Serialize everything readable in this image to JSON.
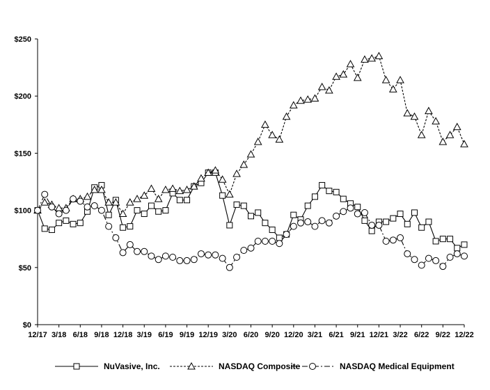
{
  "chart_data": {
    "type": "line",
    "title": "",
    "xlabel": "",
    "ylabel": "",
    "ylim": [
      0,
      250
    ],
    "y_ticks": [
      "$0",
      "$50",
      "$100",
      "$150",
      "$200",
      "$250"
    ],
    "y_tick_values": [
      0,
      50,
      100,
      150,
      200,
      250
    ],
    "x_tick_labels": [
      "12/17",
      "3/18",
      "6/18",
      "9/18",
      "12/18",
      "3/19",
      "6/19",
      "9/19",
      "12/19",
      "3/20",
      "6/20",
      "9/20",
      "12/20",
      "3/21",
      "6/21",
      "9/21",
      "12/21",
      "3/22",
      "6/22",
      "9/22",
      "12/22"
    ],
    "x_months": [
      "12/17",
      "1/18",
      "2/18",
      "3/18",
      "4/18",
      "5/18",
      "6/18",
      "7/18",
      "8/18",
      "9/18",
      "10/18",
      "11/18",
      "12/18",
      "1/19",
      "2/19",
      "3/19",
      "4/19",
      "5/19",
      "6/19",
      "7/19",
      "8/19",
      "9/19",
      "10/19",
      "11/19",
      "12/19",
      "1/20",
      "2/20",
      "3/20",
      "4/20",
      "5/20",
      "6/20",
      "7/20",
      "8/20",
      "9/20",
      "10/20",
      "11/20",
      "12/20",
      "1/21",
      "2/21",
      "3/21",
      "4/21",
      "5/21",
      "6/21",
      "7/21",
      "8/21",
      "9/21",
      "10/21",
      "11/21",
      "12/21",
      "1/22",
      "2/22",
      "3/22",
      "4/22",
      "5/22",
      "6/22",
      "7/22",
      "8/22",
      "9/22",
      "10/22",
      "11/22",
      "12/22"
    ],
    "grid": false,
    "legend_position": "bottom",
    "series": [
      {
        "name": "NuVasive, Inc.",
        "marker": "square",
        "line": "solid",
        "values": [
          100,
          84,
          83,
          89,
          91,
          88,
          89,
          99,
          120,
          122,
          96,
          109,
          85,
          86,
          100,
          97,
          104,
          99,
          100,
          115,
          109,
          109,
          121,
          124,
          133,
          133,
          113,
          87,
          105,
          104,
          95,
          98,
          89,
          83,
          76,
          79,
          96,
          92,
          104,
          112,
          122,
          117,
          116,
          110,
          106,
          103,
          91,
          82,
          90,
          90,
          93,
          97,
          88,
          98,
          85,
          90,
          73,
          75,
          75,
          67,
          70
        ]
      },
      {
        "name": "NASDAQ Composite",
        "marker": "triangle",
        "line": "dashed",
        "values": [
          100,
          107,
          105,
          102,
          102,
          110,
          110,
          112,
          118,
          118,
          107,
          107,
          97,
          107,
          110,
          113,
          119,
          110,
          118,
          119,
          117,
          118,
          121,
          128,
          133,
          135,
          127,
          114,
          132,
          140,
          149,
          160,
          175,
          166,
          162,
          182,
          192,
          196,
          197,
          198,
          208,
          205,
          217,
          219,
          228,
          216,
          232,
          233,
          235,
          214,
          206,
          214,
          185,
          182,
          166,
          187,
          178,
          160,
          166,
          173,
          158
        ]
      },
      {
        "name": "NASDAQ Medical Equipment",
        "marker": "circle",
        "line": "dashdot",
        "values": [
          100,
          114,
          103,
          97,
          100,
          110,
          108,
          103,
          104,
          100,
          86,
          76,
          63,
          70,
          64,
          64,
          60,
          57,
          60,
          59,
          56,
          56,
          57,
          62,
          61,
          61,
          58,
          50,
          59,
          65,
          67,
          73,
          73,
          73,
          71,
          79,
          86,
          89,
          90,
          86,
          91,
          89,
          95,
          99,
          102,
          97,
          98,
          87,
          87,
          73,
          74,
          76,
          62,
          57,
          52,
          58,
          56,
          51,
          59,
          62,
          60
        ]
      }
    ]
  }
}
